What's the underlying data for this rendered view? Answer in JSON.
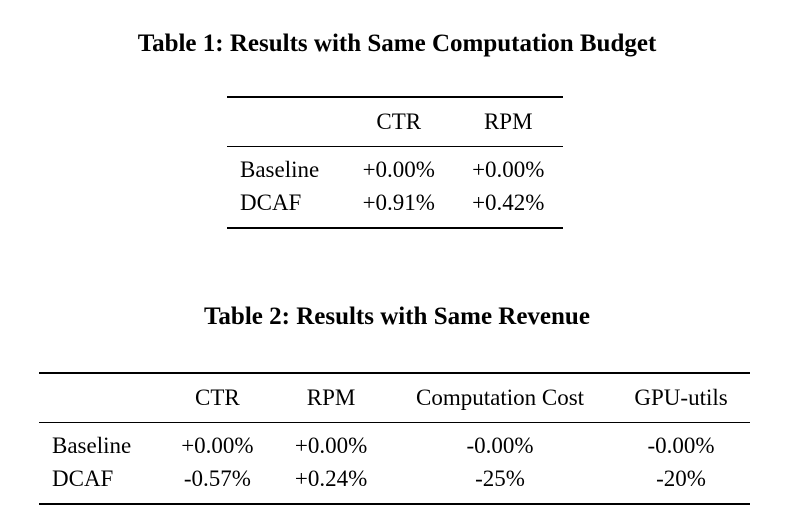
{
  "table1": {
    "caption": "Table 1: Results with Same Computation Budget",
    "headers": [
      "",
      "CTR",
      "RPM"
    ],
    "rows": [
      [
        "Baseline",
        "+0.00%",
        "+0.00%"
      ],
      [
        "DCAF",
        "+0.91%",
        "+0.42%"
      ]
    ]
  },
  "table2": {
    "caption": "Table 2: Results with Same Revenue",
    "headers": [
      "",
      "CTR",
      "RPM",
      "Computation Cost",
      "GPU-utils"
    ],
    "rows": [
      [
        "Baseline",
        "+0.00%",
        "+0.00%",
        "-0.00%",
        "-0.00%"
      ],
      [
        "DCAF",
        "-0.57%",
        "+0.24%",
        "-25%",
        "-20%"
      ]
    ]
  }
}
